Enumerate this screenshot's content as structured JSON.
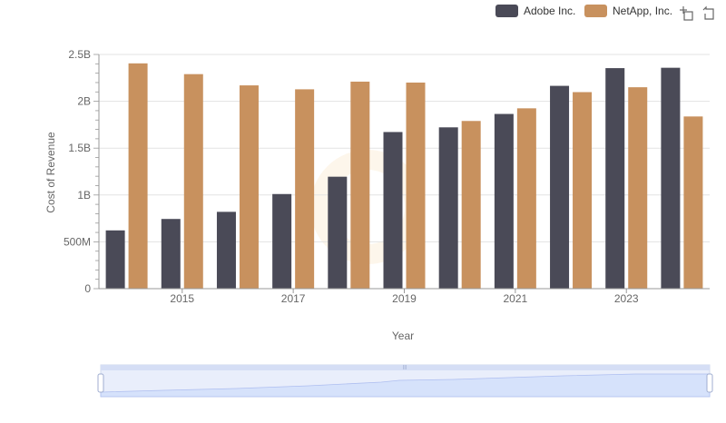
{
  "chart_data": {
    "type": "bar",
    "title": "",
    "xlabel": "Year",
    "ylabel": "Cost of Revenue",
    "ylim": [
      0,
      2500000000
    ],
    "y_ticks": [
      {
        "value": 0,
        "label": "0"
      },
      {
        "value": 500000000,
        "label": "500M"
      },
      {
        "value": 1000000000,
        "label": "1B"
      },
      {
        "value": 1500000000,
        "label": "1.5B"
      },
      {
        "value": 2000000000,
        "label": "2B"
      },
      {
        "value": 2500000000,
        "label": "2.5B"
      }
    ],
    "categories": [
      2014,
      2015,
      2016,
      2017,
      2018,
      2019,
      2020,
      2021,
      2022,
      2023,
      2024
    ],
    "x_tick_labels": [
      {
        "category": 2015,
        "label": "2015"
      },
      {
        "category": 2017,
        "label": "2017"
      },
      {
        "category": 2019,
        "label": "2019"
      },
      {
        "category": 2021,
        "label": "2021"
      },
      {
        "category": 2023,
        "label": "2023"
      }
    ],
    "series": [
      {
        "name": "Adobe Inc.",
        "color": "#4a4a57",
        "values": [
          622000000,
          744000000,
          820000000,
          1010000000,
          1195000000,
          1672000000,
          1722000000,
          1865000000,
          2165000000,
          2354000000,
          2358000000
        ]
      },
      {
        "name": "NetApp, Inc.",
        "color": "#c8915e",
        "values": [
          2405000000,
          2290000000,
          2170000000,
          2128000000,
          2210000000,
          2200000000,
          1790000000,
          1925000000,
          2098000000,
          2150000000,
          1838000000
        ]
      }
    ],
    "legend_position": "top-right",
    "grid": true
  }
}
